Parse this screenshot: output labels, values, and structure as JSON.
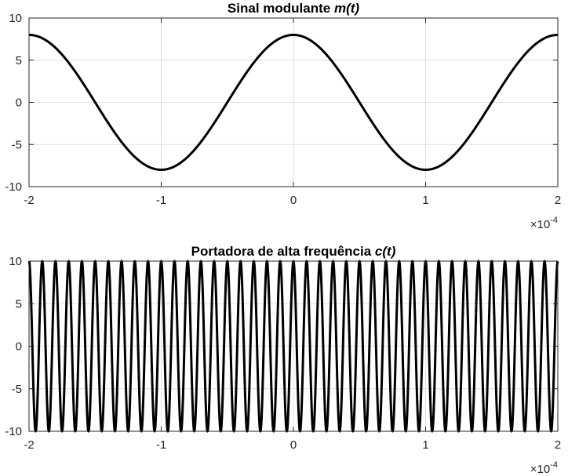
{
  "chart_data": [
    {
      "type": "line",
      "title_prefix": "Sinal modulante ",
      "title_var": "m(t)",
      "xlim": [
        -2,
        2
      ],
      "ylim": [
        -10,
        10
      ],
      "x_ticks": [
        -2,
        -1,
        0,
        1,
        2
      ],
      "y_ticks": [
        -10,
        -5,
        0,
        5,
        10
      ],
      "x_tick_labels": [
        "-2",
        "-1",
        "0",
        "1",
        "2"
      ],
      "y_tick_labels": [
        "-10",
        "-5",
        "0",
        "5",
        "10"
      ],
      "x_multiplier_base": "×10",
      "x_multiplier_exp": "-4",
      "grid": true,
      "series": [
        {
          "amplitude": 8,
          "cycles_over_xlim": 2,
          "color": "#000000"
        }
      ]
    },
    {
      "type": "line",
      "title_prefix": "Portadora de alta frequência ",
      "title_var": "c(t)",
      "xlim": [
        -2,
        2
      ],
      "ylim": [
        -10,
        10
      ],
      "x_ticks": [
        -2,
        -1,
        0,
        1,
        2
      ],
      "y_ticks": [
        -10,
        -5,
        0,
        5,
        10
      ],
      "x_tick_labels": [
        "-2",
        "-1",
        "0",
        "1",
        "2"
      ],
      "y_tick_labels": [
        "-10",
        "-5",
        "0",
        "5",
        "10"
      ],
      "x_multiplier_base": "×10",
      "x_multiplier_exp": "-4",
      "grid": true,
      "series": [
        {
          "amplitude": 10,
          "cycles_over_xlim": 40,
          "color": "#000000"
        }
      ]
    }
  ]
}
